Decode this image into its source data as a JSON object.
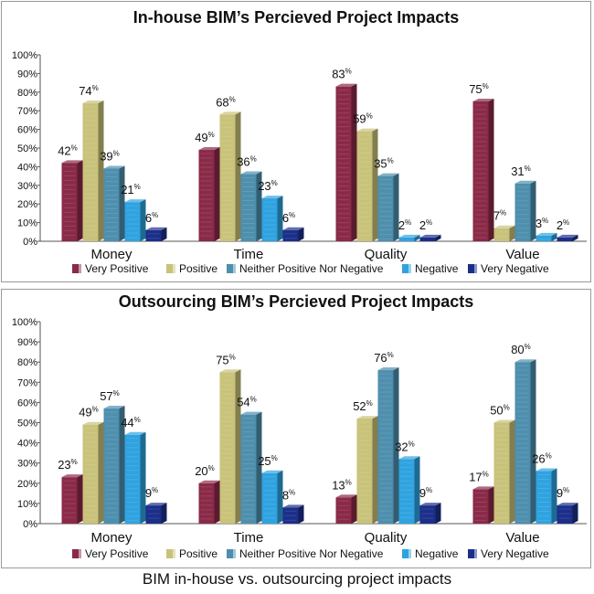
{
  "caption": "BIM in-house vs. outsourcing project impacts",
  "colors": {
    "very_positive": "#8a2a48",
    "positive": "#c9c27a",
    "neither": "#4e8fae",
    "negative": "#2fa3e0",
    "very_negative": "#1b2f8a"
  },
  "chart_data": [
    {
      "type": "bar",
      "title": "In-house BIM’s Percieved Project Impacts",
      "categories": [
        "Money",
        "Time",
        "Quality",
        "Value"
      ],
      "ylim": [
        0,
        100
      ],
      "yticks": [
        "0%",
        "10%",
        "20%",
        "30%",
        "40%",
        "50%",
        "60%",
        "70%",
        "80%",
        "90%",
        "100%"
      ],
      "value_suffix": "%",
      "grid": false,
      "legend_position": "bottom",
      "series": [
        {
          "name": "Very Positive",
          "color_key": "very_positive",
          "values": [
            42,
            49,
            83,
            75
          ]
        },
        {
          "name": "Positive",
          "color_key": "positive",
          "values": [
            74,
            68,
            59,
            7
          ]
        },
        {
          "name": "Neither Positive Nor Negative",
          "color_key": "neither",
          "values": [
            39,
            36,
            35,
            31
          ]
        },
        {
          "name": "Negative",
          "color_key": "negative",
          "values": [
            21,
            23,
            2,
            3
          ]
        },
        {
          "name": "Very Negative",
          "color_key": "very_negative",
          "values": [
            6,
            6,
            2,
            2
          ]
        }
      ]
    },
    {
      "type": "bar",
      "title": "Outsourcing BIM’s Percieved Project Impacts",
      "categories": [
        "Money",
        "Time",
        "Quality",
        "Value"
      ],
      "ylim": [
        0,
        100
      ],
      "yticks": [
        "0%",
        "10%",
        "20%",
        "30%",
        "40%",
        "50%",
        "60%",
        "70%",
        "80%",
        "90%",
        "100%"
      ],
      "value_suffix": "%",
      "grid": false,
      "legend_position": "bottom",
      "series": [
        {
          "name": "Very Positive",
          "color_key": "very_positive",
          "values": [
            23,
            20,
            13,
            17
          ]
        },
        {
          "name": "Positive",
          "color_key": "positive",
          "values": [
            49,
            75,
            52,
            50
          ]
        },
        {
          "name": "Neither Positive Nor Negative",
          "color_key": "neither",
          "values": [
            57,
            54,
            76,
            80
          ]
        },
        {
          "name": "Negative",
          "color_key": "negative",
          "values": [
            44,
            25,
            32,
            26
          ]
        },
        {
          "name": "Very Negative",
          "color_key": "very_negative",
          "values": [
            9,
            8,
            9,
            9
          ]
        }
      ]
    }
  ]
}
